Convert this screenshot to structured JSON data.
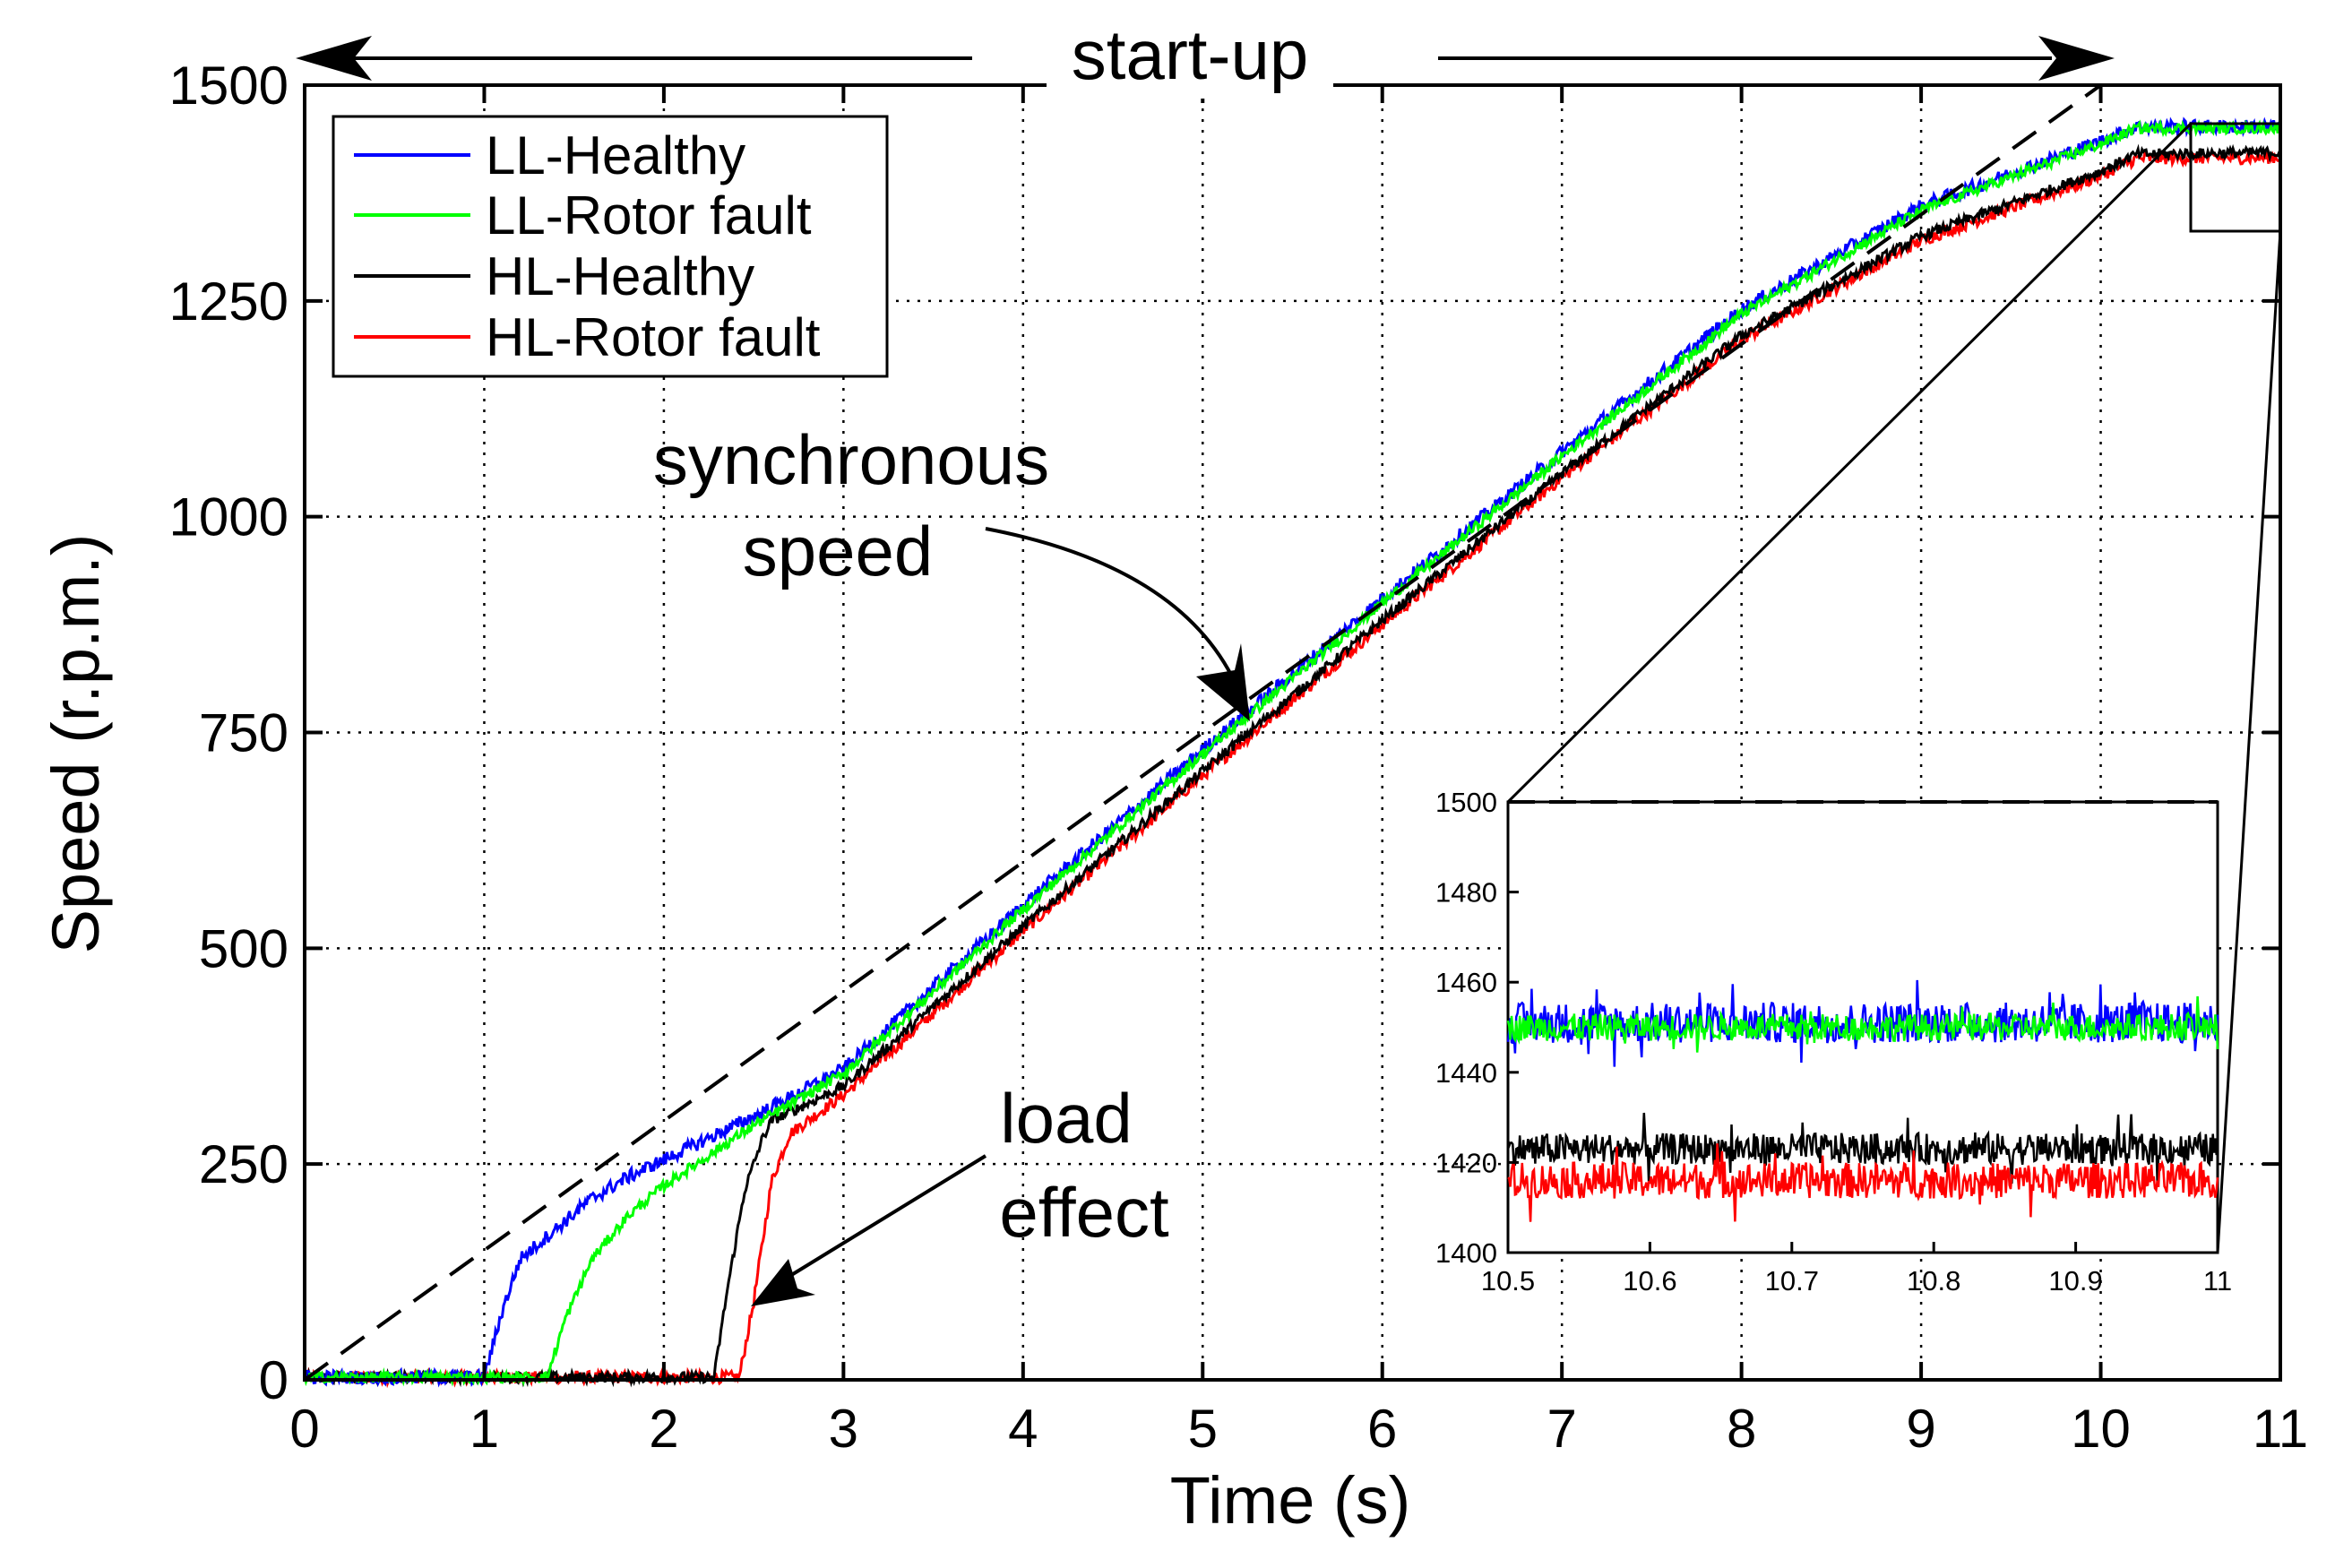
{
  "chart_data": {
    "type": "line",
    "xlabel": "Time (s)",
    "ylabel": "Speed (r.p.m.)",
    "xlim": [
      0,
      11
    ],
    "ylim": [
      0,
      1500
    ],
    "xticks": [
      0,
      1,
      2,
      3,
      4,
      5,
      6,
      7,
      8,
      9,
      10,
      11
    ],
    "yticks": [
      0,
      250,
      500,
      750,
      1000,
      1250,
      1500
    ],
    "grid": true,
    "legend_position": "top-left",
    "series": [
      {
        "name": "LL-Healthy",
        "color": "#0000ff",
        "points": [
          [
            0,
            3
          ],
          [
            1.0,
            3
          ],
          [
            1.1,
            80
          ],
          [
            1.2,
            140
          ],
          [
            1.4,
            175
          ],
          [
            1.6,
            210
          ],
          [
            1.8,
            235
          ],
          [
            2.0,
            255
          ],
          [
            2.5,
            305
          ],
          [
            3,
            360
          ],
          [
            4,
            550
          ],
          [
            5,
            730
          ],
          [
            6,
            905
          ],
          [
            7,
            1075
          ],
          [
            8,
            1240
          ],
          [
            9,
            1360
          ],
          [
            10,
            1435
          ],
          [
            10.2,
            1452
          ],
          [
            11,
            1452
          ]
        ],
        "noise": 8
      },
      {
        "name": "LL-Rotor fault",
        "color": "#00ff00",
        "points": [
          [
            0,
            3
          ],
          [
            1.35,
            3
          ],
          [
            1.45,
            70
          ],
          [
            1.6,
            140
          ],
          [
            1.8,
            190
          ],
          [
            2.0,
            225
          ],
          [
            2.5,
            295
          ],
          [
            3,
            355
          ],
          [
            4,
            545
          ],
          [
            5,
            725
          ],
          [
            6,
            900
          ],
          [
            7,
            1070
          ],
          [
            8,
            1235
          ],
          [
            9,
            1355
          ],
          [
            10,
            1432
          ],
          [
            10.2,
            1450
          ],
          [
            11,
            1450
          ]
        ],
        "noise": 6
      },
      {
        "name": "HL-Healthy",
        "color": "#000000",
        "points": [
          [
            0,
            3
          ],
          [
            2.28,
            3
          ],
          [
            2.35,
            100
          ],
          [
            2.45,
            220
          ],
          [
            2.55,
            280
          ],
          [
            2.6,
            300
          ],
          [
            3,
            340
          ],
          [
            4,
            525
          ],
          [
            5,
            705
          ],
          [
            6,
            880
          ],
          [
            7,
            1050
          ],
          [
            8,
            1210
          ],
          [
            9,
            1325
          ],
          [
            10,
            1400
          ],
          [
            10.2,
            1420
          ],
          [
            11,
            1422
          ]
        ],
        "noise": 6
      },
      {
        "name": "HL-Rotor fault",
        "color": "#ff0000",
        "points": [
          [
            0,
            3
          ],
          [
            2.42,
            3
          ],
          [
            2.5,
            90
          ],
          [
            2.6,
            230
          ],
          [
            2.7,
            285
          ],
          [
            2.8,
            300
          ],
          [
            3,
            330
          ],
          [
            4,
            520
          ],
          [
            5,
            700
          ],
          [
            6,
            875
          ],
          [
            7,
            1045
          ],
          [
            8,
            1205
          ],
          [
            9,
            1320
          ],
          [
            10,
            1395
          ],
          [
            10.2,
            1415
          ],
          [
            11,
            1416
          ]
        ],
        "noise": 7
      },
      {
        "name": "synchronous speed",
        "color": "#000000",
        "dashed": true,
        "points": [
          [
            0,
            0
          ],
          [
            10,
            1500
          ],
          [
            11,
            1500
          ]
        ]
      }
    ],
    "annotations": [
      {
        "text": "start-up"
      },
      {
        "text": "synchronous"
      },
      {
        "text": "speed"
      },
      {
        "text": "load"
      },
      {
        "text": "effect"
      }
    ],
    "inset": {
      "xlim": [
        10.5,
        11
      ],
      "ylim": [
        1400,
        1500
      ],
      "xticks": [
        "10.5",
        "10.6",
        "10.7",
        "10.8",
        "10.9",
        "11"
      ],
      "yticks": [
        "1400",
        "1420",
        "1440",
        "1460",
        "1480",
        "1500"
      ],
      "levels": [
        {
          "name": "LL-Healthy",
          "color": "#0000ff",
          "mean": 1451,
          "noise": 4.5
        },
        {
          "name": "HL-Healthy",
          "color": "#000000",
          "mean": 1423,
          "noise": 3.5
        },
        {
          "name": "HL-Rotor fault",
          "color": "#ff0000",
          "mean": 1416,
          "noise": 4
        },
        {
          "name": "LL-Rotor fault",
          "color": "#00ff00",
          "mean": 1450,
          "noise": 3
        }
      ],
      "reference": 1500
    }
  }
}
